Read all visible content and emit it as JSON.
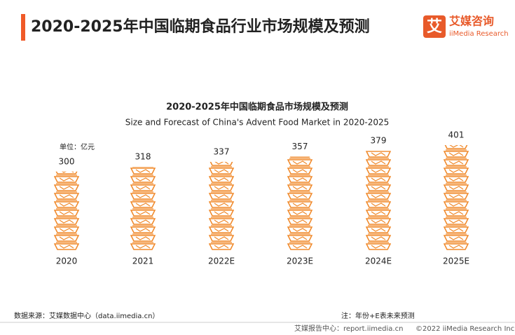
{
  "header": {
    "title": "2020-2025年中国临期食品行业市场规模及预测",
    "logo_mark": "艾",
    "logo_name": "艾媒咨询",
    "logo_sub": "iiMedia Research"
  },
  "chart_data": {
    "type": "pictograph",
    "title": "2020-2025年中国临期食品市场规模及预测",
    "subtitle": "Size and Forecast of China's Advent Food Market in 2020-2025",
    "unit": "单位：亿元",
    "categories": [
      "2020",
      "2021",
      "2022E",
      "2023E",
      "2024E",
      "2025E"
    ],
    "values": [
      300,
      318,
      337,
      357,
      379,
      401
    ],
    "color": "#f08a2c"
  },
  "footer": {
    "source": "数据来源：艾媒数据中心（data.iimedia.cn）",
    "note": "注：年份+E表未来预测",
    "site": "艾媒报告中心：report.iimedia.cn",
    "copyright": "©2022  iiMedia Research  Inc"
  }
}
